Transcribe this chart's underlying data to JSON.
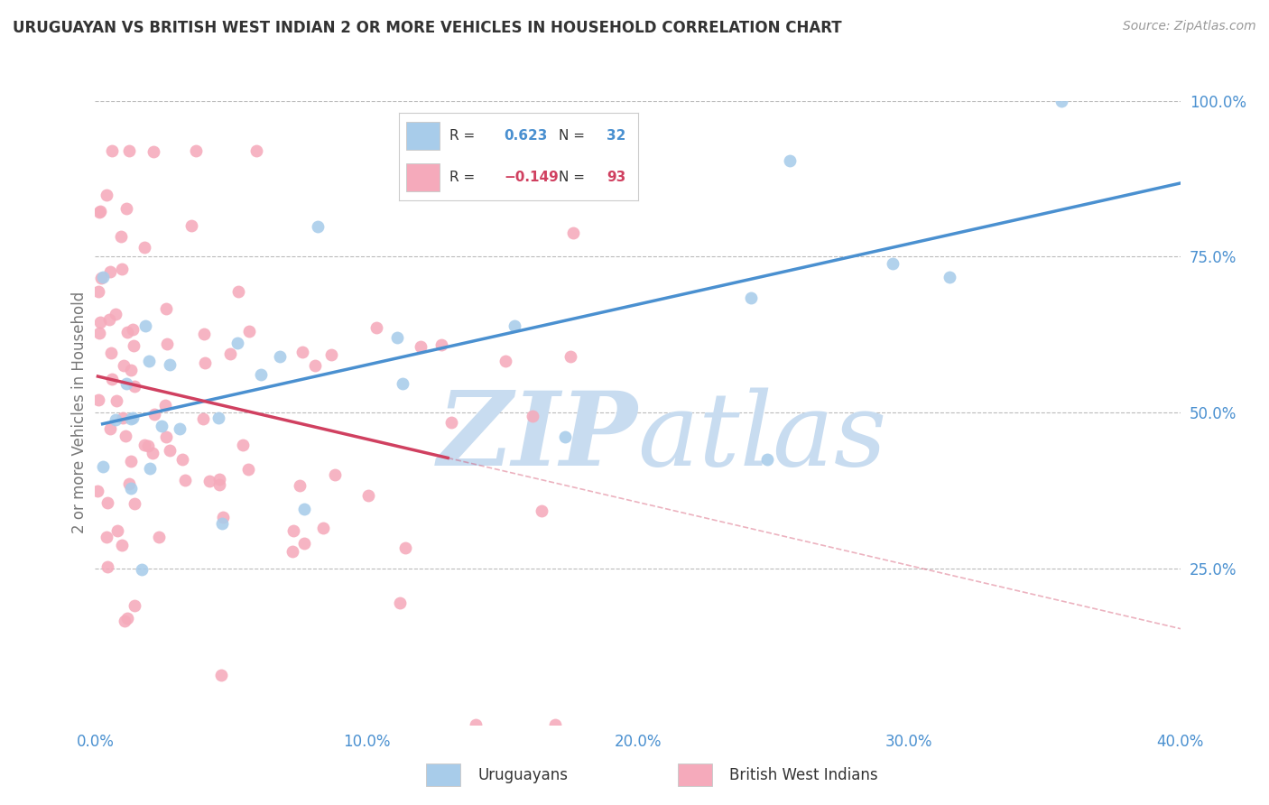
{
  "title": "URUGUAYAN VS BRITISH WEST INDIAN 2 OR MORE VEHICLES IN HOUSEHOLD CORRELATION CHART",
  "source": "Source: ZipAtlas.com",
  "ylabel": "2 or more Vehicles in Household",
  "xlim": [
    0.0,
    0.4
  ],
  "ylim": [
    0.0,
    1.0
  ],
  "x_ticks": [
    0.0,
    0.05,
    0.1,
    0.15,
    0.2,
    0.25,
    0.3,
    0.35,
    0.4
  ],
  "x_tick_labels": [
    "0.0%",
    "",
    "10.0%",
    "",
    "20.0%",
    "",
    "30.0%",
    "",
    "40.0%"
  ],
  "y_ticks": [
    0.0,
    0.25,
    0.5,
    0.75,
    1.0
  ],
  "y_tick_labels": [
    "",
    "25.0%",
    "50.0%",
    "75.0%",
    "100.0%"
  ],
  "uruguayan_R": 0.623,
  "uruguayan_N": 32,
  "bwi_R": -0.149,
  "bwi_N": 93,
  "blue_dot_color": "#A8CCEA",
  "pink_dot_color": "#F5AABB",
  "blue_line_color": "#4A90D0",
  "pink_line_color": "#D04060",
  "grid_color": "#BBBBBB",
  "axis_tick_color": "#4A90D0",
  "title_color": "#333333",
  "source_color": "#999999",
  "watermark_zip_color": "#C8DCF0",
  "watermark_atlas_color": "#C8DCF0",
  "legend_border_color": "#CCCCCC",
  "bottom_legend_label1": "Uruguayans",
  "bottom_legend_label2": "British West Indians"
}
